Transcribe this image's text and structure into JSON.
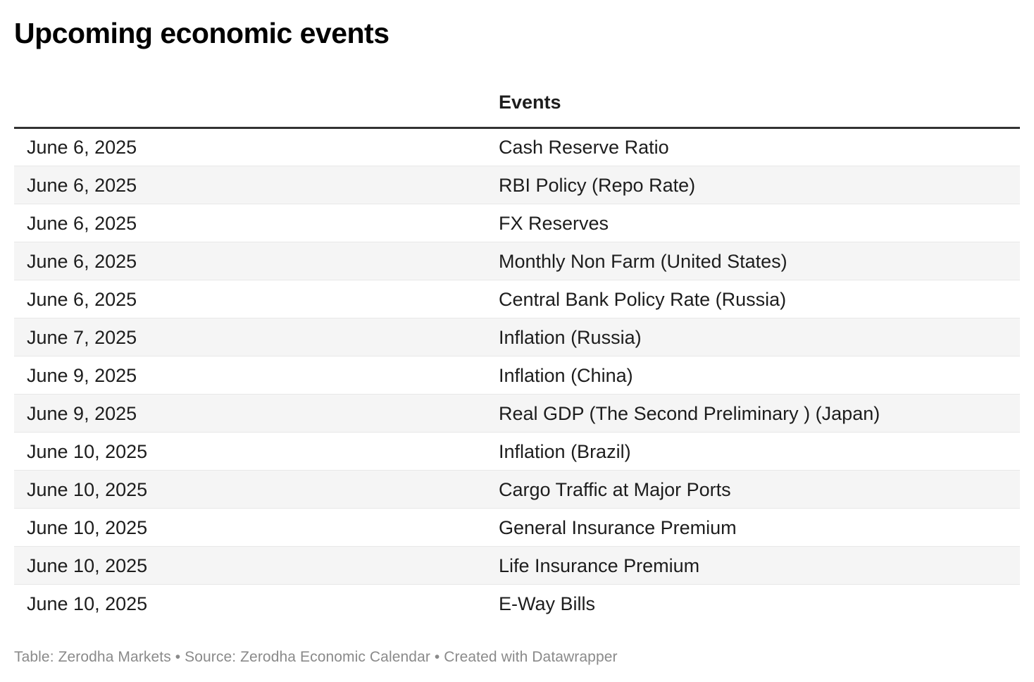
{
  "header": {
    "title": "Upcoming economic events"
  },
  "chart_data": {
    "type": "table",
    "title": "Upcoming economic events",
    "columns": [
      "",
      "Events"
    ],
    "rows": [
      [
        "June 6, 2025",
        "Cash Reserve Ratio"
      ],
      [
        "June 6, 2025",
        "RBI Policy (Repo Rate)"
      ],
      [
        "June 6, 2025",
        "FX Reserves"
      ],
      [
        "June 6, 2025",
        "Monthly Non Farm (United States)"
      ],
      [
        "June 6, 2025",
        "Central Bank Policy Rate (Russia)"
      ],
      [
        "June 7, 2025",
        "Inflation (Russia)"
      ],
      [
        "June 9, 2025",
        "Inflation (China)"
      ],
      [
        "June 9, 2025",
        "Real GDP (The Second Preliminary ) (Japan)"
      ],
      [
        "June 10, 2025",
        "Inflation (Brazil)"
      ],
      [
        "June 10, 2025",
        "Cargo Traffic at Major Ports"
      ],
      [
        "June 10, 2025",
        "General Insurance Premium"
      ],
      [
        "June 10, 2025",
        "Life Insurance Premium"
      ],
      [
        "June 10, 2025",
        "E-Way Bills"
      ]
    ],
    "layout": {
      "striped_rows": true,
      "stripe_starts_on_row": 2,
      "header_rule": true
    }
  },
  "footer": {
    "text": "Table: Zerodha Markets • Source: Zerodha Economic Calendar • Created with Datawrapper"
  },
  "colors": {
    "background": "#ffffff",
    "title_text": "#000000",
    "body_text": "#1d1d1d",
    "stripe": "#f5f5f5",
    "row_border": "#e8e8e8",
    "header_rule": "#333333",
    "footer_text": "#8a8a8a"
  }
}
